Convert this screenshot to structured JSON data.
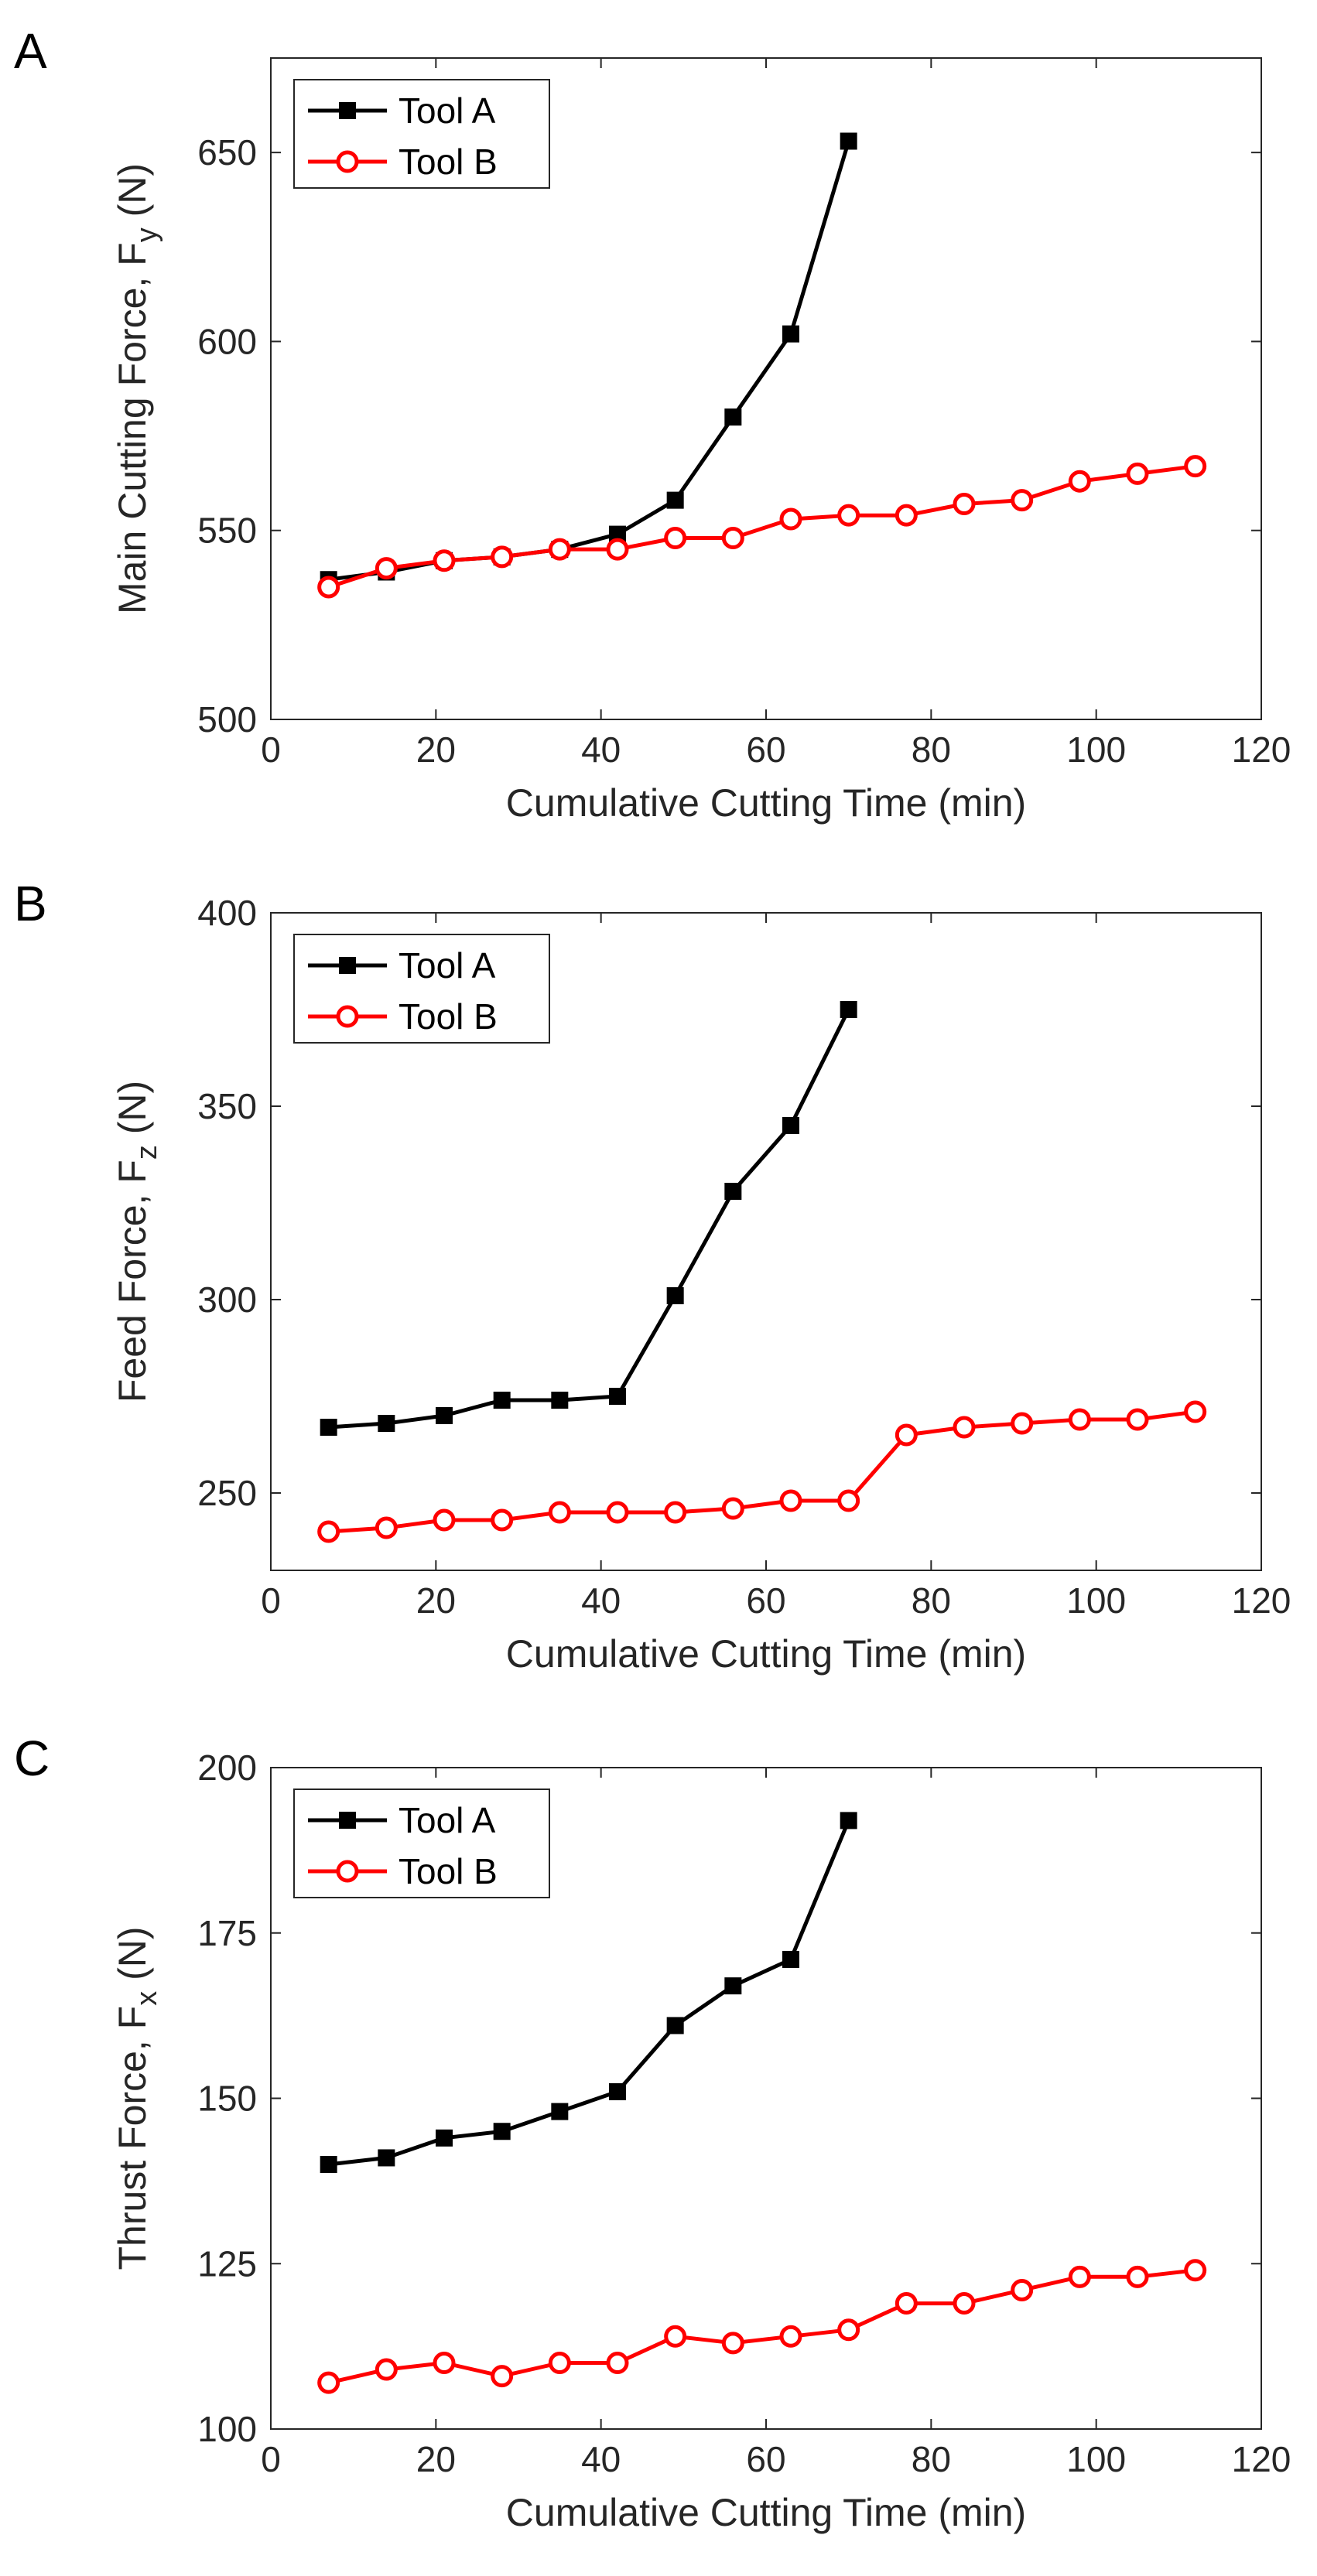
{
  "chart_data": [
    {
      "type": "line",
      "panel_label": "A",
      "xlabel": "Cumulative Cutting Time (min)",
      "ylabel": "Main Cutting Force, F",
      "ylabel_subscript": "y",
      "ylabel_unit": " (N)",
      "xlim": [
        0,
        120
      ],
      "ylim": [
        500,
        675
      ],
      "xticks": [
        0,
        20,
        40,
        60,
        80,
        100,
        120
      ],
      "yticks": [
        500,
        550,
        600,
        650
      ],
      "grid": false,
      "legend_position": "top-left",
      "series": [
        {
          "name": "Tool A",
          "color": "#000000",
          "marker": "filled-square",
          "x": [
            7,
            14,
            21,
            28,
            35,
            42,
            49,
            56,
            63,
            70
          ],
          "y": [
            537,
            539,
            542,
            543,
            545,
            549,
            558,
            580,
            602,
            653
          ]
        },
        {
          "name": "Tool B",
          "color": "#ff0000",
          "marker": "open-circle",
          "x": [
            7,
            14,
            21,
            28,
            35,
            42,
            49,
            56,
            63,
            70,
            77,
            84,
            91,
            98,
            105,
            112
          ],
          "y": [
            535,
            540,
            542,
            543,
            545,
            545,
            548,
            548,
            553,
            554,
            554,
            557,
            558,
            563,
            565,
            567
          ]
        }
      ]
    },
    {
      "type": "line",
      "panel_label": "B",
      "xlabel": "Cumulative Cutting Time (min)",
      "ylabel": "Feed Force, F",
      "ylabel_subscript": "z",
      "ylabel_unit": " (N)",
      "xlim": [
        0,
        120
      ],
      "ylim": [
        230,
        400
      ],
      "xticks": [
        0,
        20,
        40,
        60,
        80,
        100,
        120
      ],
      "yticks": [
        250,
        300,
        350,
        400
      ],
      "grid": false,
      "legend_position": "top-left",
      "series": [
        {
          "name": "Tool A",
          "color": "#000000",
          "marker": "filled-square",
          "x": [
            7,
            14,
            21,
            28,
            35,
            42,
            49,
            56,
            63,
            70
          ],
          "y": [
            267,
            268,
            270,
            274,
            274,
            275,
            301,
            328,
            345,
            375
          ]
        },
        {
          "name": "Tool B",
          "color": "#ff0000",
          "marker": "open-circle",
          "x": [
            7,
            14,
            21,
            28,
            35,
            42,
            49,
            56,
            63,
            70,
            77,
            84,
            91,
            98,
            105,
            112
          ],
          "y": [
            240,
            241,
            243,
            243,
            245,
            245,
            245,
            246,
            248,
            248,
            265,
            267,
            268,
            269,
            269,
            271
          ]
        }
      ]
    },
    {
      "type": "line",
      "panel_label": "C",
      "xlabel": "Cumulative Cutting Time (min)",
      "ylabel": "Thrust Force, F",
      "ylabel_subscript": "x",
      "ylabel_unit": " (N)",
      "xlim": [
        0,
        120
      ],
      "ylim": [
        100,
        200
      ],
      "xticks": [
        0,
        20,
        40,
        60,
        80,
        100,
        120
      ],
      "yticks": [
        100,
        125,
        150,
        175,
        200
      ],
      "grid": false,
      "legend_position": "top-left",
      "series": [
        {
          "name": "Tool A",
          "color": "#000000",
          "marker": "filled-square",
          "x": [
            7,
            14,
            21,
            28,
            35,
            42,
            49,
            56,
            63,
            70
          ],
          "y": [
            140,
            141,
            144,
            145,
            148,
            151,
            161,
            167,
            171,
            192
          ]
        },
        {
          "name": "Tool B",
          "color": "#ff0000",
          "marker": "open-circle",
          "x": [
            7,
            14,
            21,
            28,
            35,
            42,
            49,
            56,
            63,
            70,
            77,
            84,
            91,
            98,
            105,
            112
          ],
          "y": [
            107,
            109,
            110,
            108,
            110,
            110,
            114,
            113,
            114,
            115,
            119,
            119,
            121,
            123,
            123,
            124
          ]
        }
      ]
    }
  ]
}
